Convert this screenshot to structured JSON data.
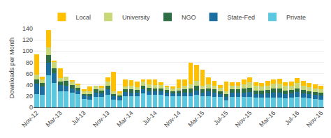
{
  "chart_data": {
    "type": "bar",
    "stacked": true,
    "ylabel": "Downloads per Month",
    "categories": [
      "Nov-12",
      null,
      null,
      null,
      "Mar-13",
      null,
      null,
      null,
      "Jul-13",
      null,
      null,
      null,
      "Nov-13",
      null,
      null,
      null,
      "Mar-14",
      null,
      null,
      null,
      "Jul-14",
      null,
      null,
      null,
      "Nov-14",
      null,
      null,
      null,
      "Mar-15",
      null,
      null,
      null,
      "Jul-15",
      null,
      null,
      null,
      "Nov-15",
      null,
      null,
      null,
      "Mar-16",
      null,
      null,
      null,
      "Jul-16",
      null,
      null,
      null,
      "Nov-16"
    ],
    "series": [
      {
        "name": "Private",
        "color": "#5bc8e0",
        "values": [
          24,
          22,
          57,
          43,
          28,
          29,
          26,
          23,
          15,
          14,
          18,
          18,
          22,
          14,
          13,
          20,
          20,
          20,
          25,
          22,
          22,
          22,
          20,
          20,
          20,
          20,
          20,
          22,
          20,
          20,
          18,
          18,
          12,
          18,
          18,
          18,
          18,
          17,
          17,
          17,
          17,
          17,
          16,
          17,
          18,
          17,
          16,
          15,
          14
        ]
      },
      {
        "name": "State-Fed",
        "color": "#1a6ea0",
        "values": [
          18,
          15,
          22,
          18,
          12,
          10,
          8,
          7,
          6,
          6,
          8,
          7,
          10,
          6,
          5,
          7,
          6,
          6,
          7,
          7,
          6,
          6,
          6,
          5,
          5,
          6,
          6,
          8,
          6,
          8,
          8,
          6,
          6,
          8,
          8,
          8,
          9,
          7,
          7,
          8,
          9,
          9,
          8,
          8,
          9,
          8,
          8,
          7,
          7
        ]
      },
      {
        "name": "NGO",
        "color": "#2d6e45",
        "values": [
          8,
          6,
          14,
          9,
          6,
          8,
          6,
          5,
          3,
          4,
          6,
          5,
          7,
          4,
          3,
          5,
          6,
          5,
          7,
          6,
          6,
          6,
          5,
          4,
          5,
          6,
          7,
          8,
          6,
          6,
          6,
          5,
          5,
          6,
          6,
          7,
          8,
          6,
          6,
          6,
          7,
          7,
          6,
          6,
          7,
          6,
          5,
          5,
          5
        ]
      },
      {
        "name": "University",
        "color": "#c8d878",
        "values": [
          8,
          6,
          14,
          10,
          6,
          7,
          6,
          5,
          4,
          5,
          6,
          5,
          7,
          5,
          4,
          5,
          6,
          5,
          7,
          6,
          6,
          6,
          6,
          5,
          5,
          6,
          8,
          9,
          7,
          7,
          7,
          6,
          6,
          7,
          7,
          8,
          10,
          8,
          7,
          8,
          9,
          9,
          8,
          8,
          9,
          8,
          7,
          7,
          6
        ]
      },
      {
        "name": "Local",
        "color": "#ffc000",
        "values": [
          36,
          5,
          30,
          3,
          17,
          0,
          2,
          1,
          4,
          8,
          0,
          4,
          7,
          34,
          3,
          12,
          10,
          10,
          4,
          8,
          10,
          5,
          2,
          3,
          14,
          12,
          38,
          28,
          28,
          12,
          8,
          5,
          17,
          5,
          5,
          8,
          8,
          6,
          6,
          8,
          8,
          9,
          7,
          7,
          9,
          8,
          7,
          7,
          6
        ]
      }
    ],
    "ylim": [
      0,
      140
    ],
    "yticks": [
      0,
      20,
      40,
      60,
      80,
      100,
      120,
      140
    ],
    "grid": true,
    "legend": "top"
  }
}
